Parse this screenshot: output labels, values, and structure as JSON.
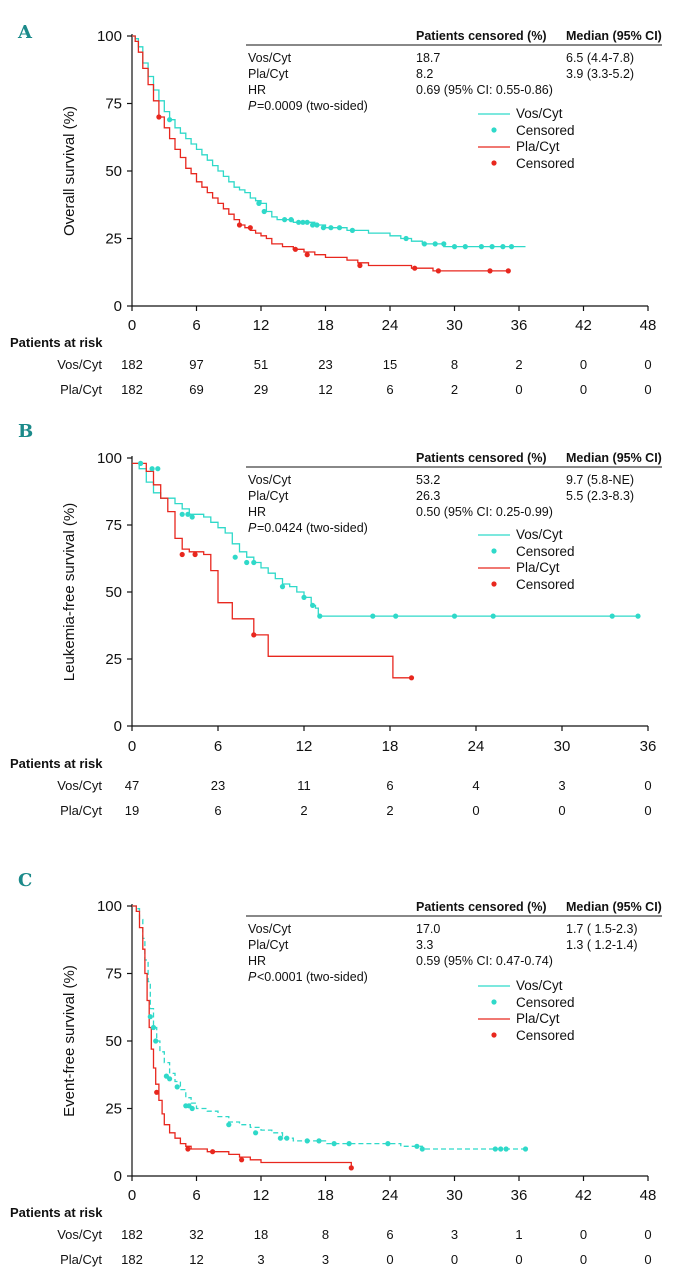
{
  "colors": {
    "vos": "#2fd9c9",
    "pla": "#e8271e",
    "axis": "#111111",
    "letter": "#1b8a8a"
  },
  "legend": {
    "vos_line": "Vos/Cyt",
    "vos_censored": "Censored",
    "pla_line": "Pla/Cyt",
    "pla_censored": "Censored"
  },
  "chart_data": [
    {
      "type": "line",
      "panel": "A",
      "ylabel": "Overall survival (%)",
      "xlabel": "",
      "xlim": [
        0,
        48
      ],
      "ylim": [
        0,
        100
      ],
      "xticks": [
        "0",
        "6",
        "12",
        "18",
        "24",
        "30",
        "36",
        "42",
        "48"
      ],
      "yticks": [
        "0",
        "25",
        "50",
        "75",
        "100"
      ],
      "table_header": {
        "censored": "Patients censored (%)",
        "median": "Median (95% CI)"
      },
      "stats": [
        {
          "label": "Vos/Cyt",
          "censored": "18.7",
          "median": "6.5 (4.4-7.8)"
        },
        {
          "label": "Pla/Cyt",
          "censored": "8.2",
          "median": "3.9 (3.3-5.2)"
        },
        {
          "label": "HR",
          "censored": "0.69 (95% CI: 0.55-0.86)",
          "median": ""
        }
      ],
      "p_prefix": "P",
      "p_rest": "=0.0009 (two-sided)",
      "risk_title": "Patients at risk",
      "risk_times": [
        0,
        6,
        12,
        18,
        24,
        30,
        36,
        42,
        48
      ],
      "risk_rows": [
        {
          "label": "Vos/Cyt",
          "values": [
            "182",
            "97",
            "51",
            "23",
            "15",
            "8",
            "2",
            "0",
            "0"
          ]
        },
        {
          "label": "Pla/Cyt",
          "values": [
            "182",
            "69",
            "29",
            "12",
            "6",
            "2",
            "0",
            "0",
            "0"
          ]
        }
      ],
      "series": [
        {
          "name": "Vos/Cyt",
          "dashed": false,
          "x": [
            0,
            0.3,
            0.6,
            1,
            1.5,
            2,
            2.5,
            3,
            3.5,
            4,
            4.5,
            5,
            5.5,
            6,
            6.5,
            7,
            7.5,
            8,
            8.5,
            9,
            9.5,
            10,
            10.5,
            11,
            11.5,
            12,
            12.5,
            13,
            13.5,
            14,
            15,
            16,
            17,
            18,
            19,
            20,
            21,
            22,
            23,
            24,
            25,
            26,
            27,
            28,
            29,
            30,
            31,
            32,
            33,
            34,
            35,
            36,
            36.6
          ],
          "y": [
            100,
            99,
            96,
            90,
            85,
            80,
            76,
            72,
            69,
            66,
            64,
            62,
            60,
            58,
            56,
            54,
            52,
            50,
            48,
            46,
            44,
            43,
            42,
            40,
            39,
            38,
            35,
            33,
            32,
            32,
            31,
            31,
            30,
            29,
            29,
            28,
            28,
            27,
            27,
            26,
            25,
            24,
            23,
            23,
            22,
            22,
            22,
            22,
            22,
            22,
            22,
            22,
            22
          ]
        },
        {
          "name": "Pla/Cyt",
          "dashed": false,
          "x": [
            0,
            0.3,
            0.6,
            1,
            1.5,
            2,
            2.5,
            3,
            3.5,
            4,
            4.5,
            5,
            5.5,
            6,
            6.5,
            7,
            7.5,
            8,
            8.5,
            9,
            9.5,
            10,
            10.5,
            11,
            11.5,
            12,
            12.5,
            13,
            14,
            15,
            16,
            17,
            18,
            19,
            20,
            21,
            22,
            24,
            26,
            27,
            28,
            29,
            30,
            32,
            34,
            35
          ],
          "y": [
            100,
            98,
            94,
            88,
            82,
            76,
            70,
            66,
            62,
            58,
            55,
            51,
            49,
            46,
            44,
            42,
            40,
            38,
            36,
            34,
            32,
            30,
            29,
            28,
            27,
            26,
            25,
            23,
            22,
            21,
            20,
            19,
            18,
            18,
            17,
            16,
            15,
            15,
            14,
            14,
            13,
            13,
            13,
            13,
            13,
            13
          ]
        }
      ],
      "censored": [
        {
          "name": "Vos/Cyt",
          "x": [
            3.5,
            11.8,
            12.3,
            14.2,
            14.8,
            15.5,
            15.9,
            16.3,
            16.8,
            17.2,
            17.8,
            18.5,
            19.3,
            20.5,
            25.5,
            27.2,
            28.2,
            29,
            30,
            31,
            32.5,
            33.5,
            34.5,
            35.3
          ],
          "y": [
            69,
            38,
            35,
            32,
            32,
            31,
            31,
            31,
            30,
            30,
            29,
            29,
            29,
            28,
            25,
            23,
            23,
            23,
            22,
            22,
            22,
            22,
            22,
            22
          ]
        },
        {
          "name": "Pla/Cyt",
          "x": [
            2.5,
            10,
            11,
            15.2,
            16.3,
            21.2,
            26.3,
            28.5,
            33.3,
            35
          ],
          "y": [
            70,
            30,
            29,
            21,
            19,
            15,
            14,
            13,
            13,
            13
          ]
        }
      ]
    },
    {
      "type": "line",
      "panel": "B",
      "ylabel": "Leukemia-free survival (%)",
      "xlabel": "",
      "xlim": [
        0,
        36
      ],
      "ylim": [
        0,
        100
      ],
      "xticks": [
        "0",
        "6",
        "12",
        "18",
        "24",
        "30",
        "36"
      ],
      "yticks": [
        "0",
        "25",
        "50",
        "75",
        "100"
      ],
      "table_header": {
        "censored": "Patients censored (%)",
        "median": "Median (95% CI)"
      },
      "stats": [
        {
          "label": "Vos/Cyt",
          "censored": "53.2",
          "median": "9.7 (5.8-NE)"
        },
        {
          "label": "Pla/Cyt",
          "censored": "26.3",
          "median": "5.5 (2.3-8.3)"
        },
        {
          "label": "HR",
          "censored": "0.50 (95% CI: 0.25-0.99)",
          "median": ""
        }
      ],
      "p_prefix": "P",
      "p_rest": "=0.0424 (two-sided)",
      "risk_title": "Patients at risk",
      "risk_times": [
        0,
        6,
        12,
        18,
        24,
        30,
        36
      ],
      "risk_rows": [
        {
          "label": "Vos/Cyt",
          "values": [
            "47",
            "23",
            "11",
            "6",
            "4",
            "3",
            "0"
          ]
        },
        {
          "label": "Pla/Cyt",
          "values": [
            "19",
            "6",
            "2",
            "2",
            "0",
            "0",
            "0"
          ]
        }
      ],
      "series": [
        {
          "name": "Vos/Cyt",
          "dashed": false,
          "x": [
            0,
            0.5,
            1,
            1.5,
            2,
            3,
            3.5,
            4,
            5,
            5.5,
            6,
            6.5,
            7,
            7.5,
            8,
            8.5,
            9,
            9.5,
            10,
            10.5,
            11,
            11.5,
            12,
            12.5,
            12.8,
            13,
            15,
            20,
            25,
            30,
            35.3
          ],
          "y": [
            98,
            96,
            91,
            87,
            85,
            83,
            81,
            79,
            78,
            76,
            74,
            72,
            68,
            65,
            63,
            61,
            59,
            57,
            55,
            53,
            52,
            50,
            48,
            45,
            44,
            41,
            41,
            41,
            41,
            41,
            41
          ]
        },
        {
          "name": "Pla/Cyt",
          "dashed": false,
          "x": [
            0,
            1,
            1.5,
            2,
            2.5,
            3,
            3.5,
            4,
            5,
            5.5,
            6,
            6.5,
            7,
            8,
            8.5,
            9,
            9.5,
            10,
            12,
            14,
            16,
            18,
            18.2,
            19.5
          ],
          "y": [
            98,
            95,
            90,
            85,
            80,
            70,
            66,
            65,
            64,
            58,
            46,
            46,
            40,
            40,
            34,
            34,
            26,
            26,
            26,
            26,
            26,
            26,
            18,
            18
          ]
        }
      ],
      "censored": [
        {
          "name": "Vos/Cyt",
          "x": [
            0.6,
            1.4,
            1.8,
            3.5,
            3.9,
            4.2,
            7.2,
            8,
            8.5,
            10.5,
            12,
            12.6,
            13.1,
            16.8,
            18.4,
            22.5,
            25.2,
            33.5,
            35.3
          ],
          "y": [
            98,
            96,
            96,
            79,
            79,
            78,
            63,
            61,
            61,
            52,
            48,
            45,
            41,
            41,
            41,
            41,
            41,
            41,
            41
          ]
        },
        {
          "name": "Pla/Cyt",
          "x": [
            3.5,
            4.4,
            8.5,
            19.5
          ],
          "y": [
            64,
            64,
            34,
            18
          ]
        }
      ]
    },
    {
      "type": "line",
      "panel": "C",
      "ylabel": "Event-free survival (%)",
      "xlabel": "",
      "xlim": [
        0,
        48
      ],
      "ylim": [
        0,
        100
      ],
      "xticks": [
        "0",
        "6",
        "12",
        "18",
        "24",
        "30",
        "36",
        "42",
        "48"
      ],
      "yticks": [
        "0",
        "25",
        "50",
        "75",
        "100"
      ],
      "table_header": {
        "censored": "Patients censored (%)",
        "median": "Median (95% CI)"
      },
      "stats": [
        {
          "label": "Vos/Cyt",
          "censored": "17.0",
          "median": "1.7 ( 1.5-2.3)"
        },
        {
          "label": "Pla/Cyt",
          "censored": "3.3",
          "median": "1.3 ( 1.2-1.4)"
        },
        {
          "label": "HR",
          "censored": "0.59 (95% CI: 0.47-0.74)",
          "median": ""
        }
      ],
      "p_prefix": "P",
      "p_rest": "<0.0001 (two-sided)",
      "risk_title": "Patients at risk",
      "risk_times": [
        0,
        6,
        12,
        18,
        24,
        30,
        36,
        42,
        48
      ],
      "risk_rows": [
        {
          "label": "Vos/Cyt",
          "values": [
            "182",
            "32",
            "18",
            "8",
            "6",
            "3",
            "1",
            "0",
            "0"
          ]
        },
        {
          "label": "Pla/Cyt",
          "values": [
            "182",
            "12",
            "3",
            "3",
            "0",
            "0",
            "0",
            "0",
            "0"
          ]
        }
      ],
      "series": [
        {
          "name": "Vos/Cyt",
          "dashed": true,
          "x": [
            0,
            0.4,
            0.7,
            1,
            1.2,
            1.5,
            1.7,
            2,
            2.3,
            2.6,
            3,
            3.5,
            4,
            4.5,
            5,
            5.5,
            6,
            7,
            8,
            9,
            10,
            11,
            12,
            13,
            14,
            15,
            16,
            18,
            20,
            22,
            24,
            25,
            26,
            27,
            30,
            33,
            36,
            36.6
          ],
          "y": [
            100,
            99,
            95,
            88,
            80,
            72,
            62,
            55,
            50,
            46,
            42,
            38,
            35,
            32,
            29,
            27,
            25,
            24,
            22,
            20,
            19,
            18,
            17,
            16,
            14,
            13,
            13,
            12,
            12,
            12,
            12,
            11,
            11,
            10,
            10,
            10,
            10,
            10
          ]
        },
        {
          "name": "Pla/Cyt",
          "dashed": false,
          "x": [
            0,
            0.4,
            0.7,
            1,
            1.2,
            1.4,
            1.6,
            1.8,
            2,
            2.2,
            2.5,
            2.8,
            3,
            3.5,
            4,
            4.5,
            5,
            5.5,
            6,
            7,
            8,
            9,
            10,
            11,
            12,
            14,
            16,
            18,
            19,
            20,
            20.4
          ],
          "y": [
            100,
            98,
            92,
            84,
            75,
            65,
            55,
            47,
            40,
            34,
            28,
            23,
            19,
            16,
            14,
            12,
            11,
            10,
            10,
            9,
            9,
            8,
            7,
            6,
            5,
            5,
            5,
            5,
            5,
            5,
            3
          ]
        }
      ],
      "censored": [
        {
          "name": "Vos/Cyt",
          "x": [
            1.7,
            2,
            2.2,
            3.2,
            3.5,
            4.2,
            5,
            5.3,
            5.6,
            9,
            11.5,
            13.8,
            14.4,
            16.3,
            17.4,
            18.8,
            20.2,
            23.8,
            26.5,
            27,
            33.8,
            34.3,
            34.8,
            36.6
          ],
          "y": [
            59,
            55,
            50,
            37,
            36,
            33,
            26,
            26,
            25,
            19,
            16,
            14,
            14,
            13,
            13,
            12,
            12,
            12,
            11,
            10,
            10,
            10,
            10,
            10
          ]
        },
        {
          "name": "Pla/Cyt",
          "x": [
            2.3,
            5.2,
            7.5,
            10.2,
            20.4
          ],
          "y": [
            31,
            10,
            9,
            6,
            3
          ]
        }
      ]
    }
  ]
}
